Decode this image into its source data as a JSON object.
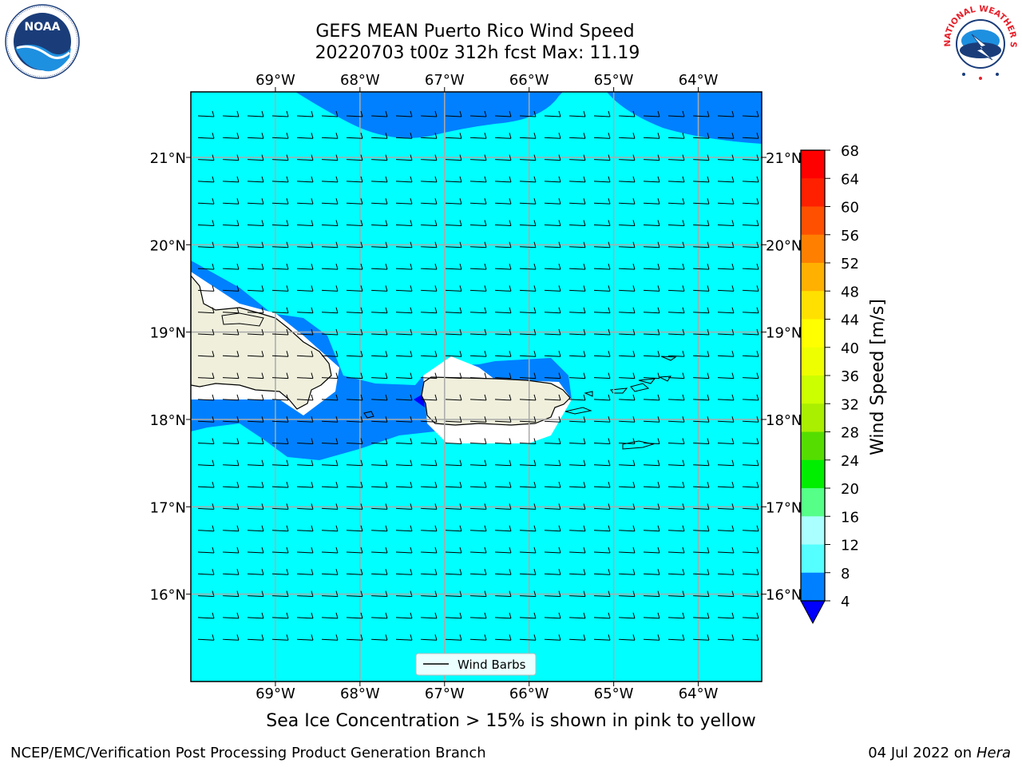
{
  "title": {
    "line1": "GEFS MEAN Puerto Rico Wind Speed",
    "line2": "20220703 t00z 312h fcst   Max: 11.19"
  },
  "map": {
    "lon_range": [
      -70,
      -63.25
    ],
    "lat_range": [
      15,
      21.75
    ],
    "lon_ticks": [
      "69°W",
      "68°W",
      "67°W",
      "66°W",
      "65°W",
      "64°W"
    ],
    "lat_ticks": [
      "21°N",
      "20°N",
      "19°N",
      "18°N",
      "17°N",
      "16°N"
    ],
    "legend_label": "Wind Barbs",
    "land_color": "#efefdc",
    "ocean_color": "#00ffff",
    "low_wind_color": "#0080ff"
  },
  "colorbar": {
    "label": "Wind Speed [m/s]",
    "ticks": [
      "68",
      "64",
      "60",
      "56",
      "52",
      "48",
      "44",
      "40",
      "36",
      "32",
      "28",
      "24",
      "20",
      "16",
      "12",
      "8",
      "4"
    ],
    "colors": [
      "#ff0000",
      "#ff2000",
      "#ff5000",
      "#ff8000",
      "#ffb000",
      "#ffe000",
      "#ffff00",
      "#eeff00",
      "#ccff00",
      "#aaee00",
      "#55dd00",
      "#00ee00",
      "#55ff88",
      "#aaffff",
      "#55ffff",
      "#00ffff",
      "#0080ff"
    ],
    "under_color": "#0000ff"
  },
  "caption": "Sea Ice Concentration > 15% is shown in pink to yellow",
  "footer": {
    "left": "NCEP/EMC/Verification Post Processing Product Generation Branch",
    "date": "04 Jul 2022 on ",
    "machine": "Hera"
  },
  "logos": {
    "noaa_text": "NOAA",
    "nws_text": "NATIONAL WEATHER SERVICE"
  }
}
